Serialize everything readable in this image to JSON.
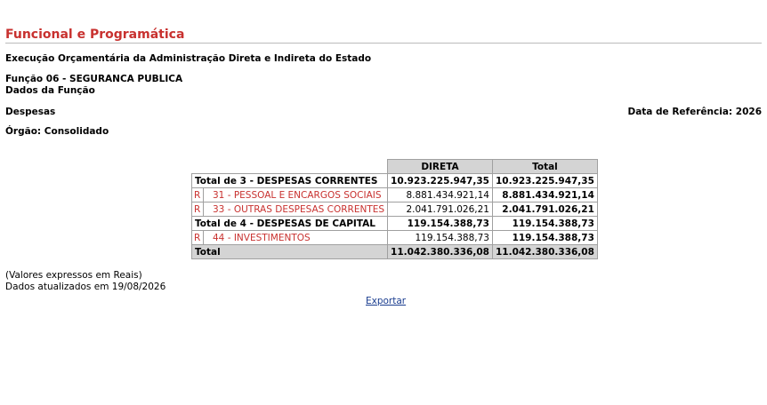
{
  "header": {
    "title": "Funcional e Programática",
    "subtitle": "Execução Orçamentária da Administração Direta e Indireta do Estado",
    "funcao": "Função 06 - SEGURANCA PUBLICA",
    "dados": "Dados da Função",
    "despesas": "Despesas",
    "data_referencia": "Data de Referência: 2026",
    "orgao": "Órgão: Consolidado"
  },
  "table": {
    "columns": [
      "DIRETA",
      "Total"
    ],
    "rows": [
      {
        "label": "Total de 3 - DESPESAS CORRENTES",
        "direta": "10.923.225.947,35",
        "total": "10.923.225.947,35"
      },
      {
        "marker": "R",
        "label": "31 - PESSOAL E ENCARGOS SOCIAIS",
        "direta": "8.881.434.921,14",
        "total": "8.881.434.921,14"
      },
      {
        "marker": "R",
        "label": "33 - OUTRAS DESPESAS CORRENTES",
        "direta": "2.041.791.026,21",
        "total": "2.041.791.026,21"
      },
      {
        "label": "Total de 4 - DESPESAS DE CAPITAL",
        "direta": "119.154.388,73",
        "total": "119.154.388,73"
      },
      {
        "marker": "R",
        "label": "44 - INVESTIMENTOS",
        "direta": "119.154.388,73",
        "total": "119.154.388,73"
      }
    ],
    "total": {
      "label": "Total",
      "direta": "11.042.380.336,08",
      "total": "11.042.380.336,08"
    }
  },
  "footer": {
    "note": "(Valores expressos em Reais)",
    "updated": "Dados atualizados em 19/08/2026",
    "link": "Exportar"
  }
}
